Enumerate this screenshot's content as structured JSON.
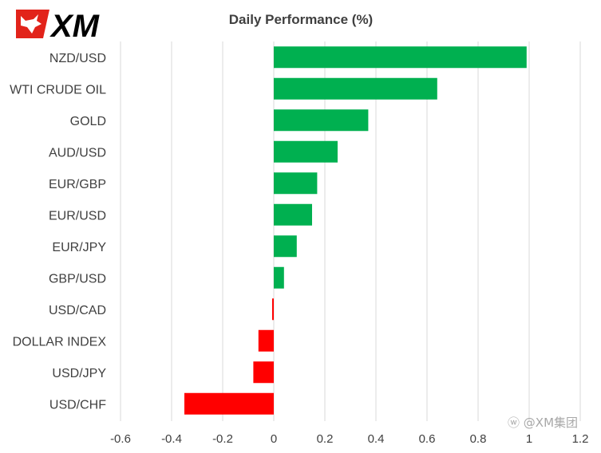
{
  "logo": {
    "text": "XM",
    "brand_color": "#e2231a",
    "text_color": "#000000"
  },
  "watermark": {
    "text": "@XM集团"
  },
  "colors": {
    "positive": "#00b050",
    "negative": "#ff0000",
    "grid": "#d9d9d9",
    "text": "#404040"
  },
  "chart_data": {
    "type": "bar",
    "orientation": "horizontal",
    "title": "Daily Performance  (%)",
    "xlabel": "",
    "ylabel": "",
    "categories": [
      "NZD/USD",
      "WTI CRUDE OIL",
      "GOLD",
      "AUD/USD",
      "EUR/GBP",
      "EUR/USD",
      "EUR/JPY",
      "GBP/USD",
      "USD/CAD",
      "DOLLAR INDEX",
      "USD/JPY",
      "USD/CHF"
    ],
    "values": [
      0.99,
      0.64,
      0.37,
      0.25,
      0.17,
      0.15,
      0.09,
      0.04,
      -0.005,
      -0.06,
      -0.08,
      -0.35
    ],
    "xlim": [
      -0.6,
      1.2
    ],
    "ticks": [
      -0.6,
      -0.4,
      -0.2,
      0,
      0.2,
      0.4,
      0.6,
      0.8,
      1,
      1.2
    ],
    "tick_labels": [
      "-0.6",
      "-0.4",
      "-0.2",
      "0",
      "0.2",
      "0.4",
      "0.6",
      "0.8",
      "1",
      "1.2"
    ],
    "grid": "vertical",
    "legend": "none"
  }
}
